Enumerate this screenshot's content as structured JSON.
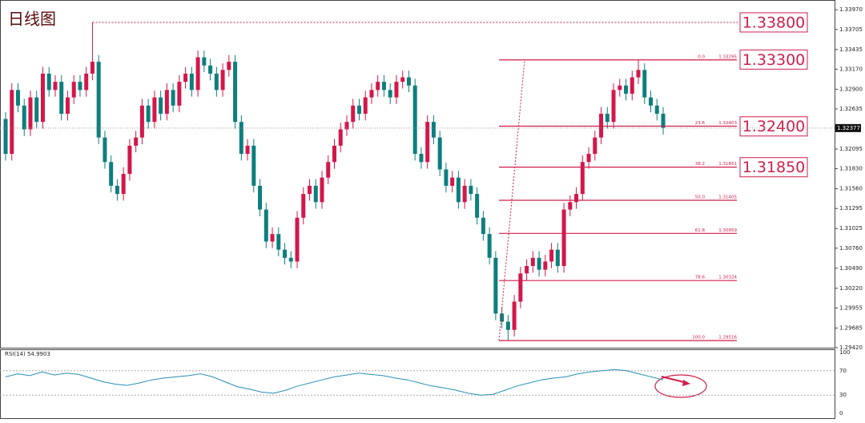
{
  "chart_data": {
    "type": "candlestick",
    "title": "日线图",
    "open": [
      1.325,
      1.3203,
      1.3289,
      1.3268,
      1.3236,
      1.3279,
      1.3246,
      1.3311,
      1.3289,
      1.33,
      1.3257,
      1.3279,
      1.33,
      1.3289,
      1.3311,
      1.3327,
      1.3225,
      1.3192,
      1.316,
      1.3149,
      1.3176,
      1.3214,
      1.3225,
      1.3268,
      1.3246,
      1.3279,
      1.3257,
      1.3289,
      1.3268,
      1.33,
      1.3311,
      1.3289,
      1.3333,
      1.3322,
      1.3311,
      1.3289,
      1.3316,
      1.3327,
      1.3246,
      1.3203,
      1.3214,
      1.316,
      1.3128,
      1.3085,
      1.3095,
      1.3074,
      1.3063,
      1.3058,
      1.3117,
      1.3149,
      1.316,
      1.3138,
      1.3171,
      1.3192,
      1.3214,
      1.3236,
      1.3246,
      1.3268,
      1.3257,
      1.3279,
      1.3289,
      1.33,
      1.3289,
      1.3279,
      1.33,
      1.3306,
      1.3295,
      1.3203,
      1.3192,
      1.3246,
      1.3225,
      1.3182,
      1.316,
      1.3171,
      1.3138,
      1.316,
      1.3149,
      1.3117,
      1.3095,
      1.3063,
      1.2988,
      1.2977,
      1.2966,
      1.3004,
      1.3042,
      1.3052,
      1.3063,
      1.3047,
      1.3058,
      1.3074,
      1.3052,
      1.3128,
      1.3138,
      1.3149,
      1.3192,
      1.3203,
      1.3225,
      1.3257,
      1.3246,
      1.3289,
      1.3295,
      1.3284,
      1.3306,
      1.3316,
      1.3279,
      1.3268,
      1.3257
    ],
    "high": [
      1.3259,
      1.3298,
      1.3298,
      1.3277,
      1.3288,
      1.3288,
      1.332,
      1.332,
      1.3309,
      1.3309,
      1.3288,
      1.3309,
      1.3309,
      1.332,
      1.338,
      1.3336,
      1.3234,
      1.3201,
      1.3169,
      1.3185,
      1.3223,
      1.3234,
      1.3277,
      1.3277,
      1.3288,
      1.3288,
      1.3298,
      1.3298,
      1.3309,
      1.332,
      1.332,
      1.3342,
      1.3342,
      1.3331,
      1.332,
      1.3325,
      1.3336,
      1.3336,
      1.3255,
      1.3223,
      1.3223,
      1.3169,
      1.3137,
      1.3104,
      1.3104,
      1.3083,
      1.3072,
      1.3126,
      1.3158,
      1.3169,
      1.3169,
      1.318,
      1.3201,
      1.3223,
      1.3245,
      1.3255,
      1.3277,
      1.3277,
      1.3288,
      1.3298,
      1.3309,
      1.3309,
      1.3298,
      1.3309,
      1.3315,
      1.3315,
      1.3304,
      1.3212,
      1.3255,
      1.3255,
      1.3234,
      1.3191,
      1.318,
      1.318,
      1.3169,
      1.3169,
      1.3158,
      1.3126,
      1.3104,
      1.3072,
      1.2997,
      1.2986,
      1.3013,
      1.3051,
      1.3061,
      1.3072,
      1.3072,
      1.3067,
      1.3083,
      1.3083,
      1.3137,
      1.3147,
      1.3158,
      1.3201,
      1.3212,
      1.3234,
      1.3266,
      1.3266,
      1.3298,
      1.3304,
      1.3304,
      1.3315,
      1.333,
      1.3325,
      1.3288,
      1.3277,
      1.3266
    ],
    "low": [
      1.3194,
      1.3194,
      1.3259,
      1.3227,
      1.3227,
      1.3237,
      1.3237,
      1.328,
      1.328,
      1.3248,
      1.3248,
      1.327,
      1.328,
      1.328,
      1.3302,
      1.3216,
      1.3183,
      1.3151,
      1.314,
      1.314,
      1.3167,
      1.3205,
      1.3216,
      1.3237,
      1.3237,
      1.3248,
      1.3248,
      1.3259,
      1.3259,
      1.3291,
      1.328,
      1.328,
      1.3313,
      1.3302,
      1.328,
      1.328,
      1.3307,
      1.3237,
      1.3194,
      1.3194,
      1.3151,
      1.3119,
      1.3076,
      1.3076,
      1.3065,
      1.3054,
      1.3049,
      1.3049,
      1.3108,
      1.314,
      1.3129,
      1.3129,
      1.3162,
      1.3183,
      1.3205,
      1.3227,
      1.3237,
      1.3248,
      1.3248,
      1.327,
      1.328,
      1.328,
      1.327,
      1.327,
      1.3291,
      1.3286,
      1.3194,
      1.3183,
      1.3183,
      1.3216,
      1.3173,
      1.3151,
      1.3151,
      1.3129,
      1.3129,
      1.314,
      1.3108,
      1.3086,
      1.3054,
      1.2979,
      1.2968,
      1.2952,
      1.2957,
      1.2995,
      1.3033,
      1.3043,
      1.3038,
      1.3038,
      1.3049,
      1.3043,
      1.3043,
      1.3119,
      1.3129,
      1.314,
      1.3183,
      1.3194,
      1.3216,
      1.3237,
      1.3237,
      1.328,
      1.3275,
      1.3275,
      1.3297,
      1.327,
      1.3259,
      1.3248,
      1.3229
    ],
    "close": [
      1.3203,
      1.3289,
      1.3268,
      1.3236,
      1.3279,
      1.3246,
      1.3311,
      1.3289,
      1.33,
      1.3257,
      1.3279,
      1.33,
      1.3289,
      1.3311,
      1.3327,
      1.3225,
      1.3192,
      1.316,
      1.3149,
      1.3176,
      1.3214,
      1.3225,
      1.3268,
      1.3246,
      1.3279,
      1.3257,
      1.3289,
      1.3268,
      1.33,
      1.3311,
      1.3289,
      1.3333,
      1.3322,
      1.3311,
      1.3289,
      1.3316,
      1.3327,
      1.3246,
      1.3203,
      1.3214,
      1.316,
      1.3128,
      1.3085,
      1.3095,
      1.3074,
      1.3063,
      1.3058,
      1.3117,
      1.3149,
      1.316,
      1.3138,
      1.3171,
      1.3192,
      1.3214,
      1.3236,
      1.3246,
      1.3268,
      1.3257,
      1.3279,
      1.3289,
      1.33,
      1.3289,
      1.3279,
      1.33,
      1.3306,
      1.3295,
      1.3203,
      1.3192,
      1.3246,
      1.3225,
      1.3182,
      1.316,
      1.3171,
      1.3138,
      1.316,
      1.3149,
      1.3117,
      1.3095,
      1.3063,
      1.2988,
      1.2977,
      1.2966,
      1.3004,
      1.3042,
      1.3052,
      1.3063,
      1.3047,
      1.3058,
      1.3074,
      1.3052,
      1.3128,
      1.3138,
      1.3149,
      1.3192,
      1.3203,
      1.3225,
      1.3257,
      1.3246,
      1.3289,
      1.3295,
      1.3284,
      1.3306,
      1.3316,
      1.3279,
      1.3268,
      1.3257,
      1.3238
    ],
    "up_color": "#d3174a",
    "down_color": "#0e7e7e",
    "ylim": [
      1.2942,
      1.3408
    ],
    "yticks": [
      {
        "value": 1.3397,
        "label": "1.33970"
      },
      1.33705,
      1.33435,
      {
        "value": 1.3317,
        "label": "1.33170"
      },
      {
        "value": 1.329,
        "label": "1.32900"
      },
      1.32635,
      1.32095,
      {
        "value": 1.3183,
        "label": "1.31830"
      },
      {
        "value": 1.3156,
        "label": "1.31560"
      },
      1.31295,
      1.31025,
      {
        "value": 1.3076,
        "label": "1.30760"
      },
      {
        "value": 1.3049,
        "label": "1.30490"
      },
      {
        "value": 1.3022,
        "label": "1.30220"
      },
      1.29955,
      1.29685,
      {
        "value": 1.2942,
        "label": "1.29420"
      }
    ],
    "last_price": 1.32377,
    "fib_color": "#d01e4a",
    "fib_levels": [
      {
        "ratio": "0.0",
        "price": 1.33295
      },
      {
        "ratio": "23.6",
        "price": 1.32403
      },
      {
        "ratio": "38.2",
        "price": 1.31851
      },
      {
        "ratio": "50.0",
        "price": 1.31405
      },
      {
        "ratio": "61.8",
        "price": 1.30959
      },
      {
        "ratio": "78.6",
        "price": 1.30324
      },
      {
        "ratio": "100.0",
        "price": 1.29516
      }
    ],
    "key_levels": [
      {
        "value": 1.338,
        "label": "1.33800"
      },
      {
        "value": 1.333,
        "label": "1.33300"
      },
      {
        "value": 1.324,
        "label": "1.32400"
      },
      {
        "value": 1.3185,
        "label": "1.31850"
      }
    ],
    "rsi": {
      "label": "RSI(14) 54.9903",
      "color": "#2a8fb5",
      "ylim": [
        0,
        100
      ],
      "yticks": [
        100,
        70,
        30,
        0
      ],
      "values": [
        60,
        65,
        62,
        68,
        63,
        66,
        64,
        58,
        52,
        48,
        46,
        50,
        55,
        58,
        60,
        62,
        65,
        60,
        52,
        44,
        40,
        35,
        33,
        38,
        45,
        50,
        55,
        60,
        63,
        66,
        64,
        62,
        58,
        55,
        50,
        45,
        42,
        38,
        33,
        30,
        31,
        38,
        45,
        50,
        55,
        58,
        60,
        65,
        68,
        70,
        72,
        70,
        65,
        60,
        55
      ]
    }
  }
}
